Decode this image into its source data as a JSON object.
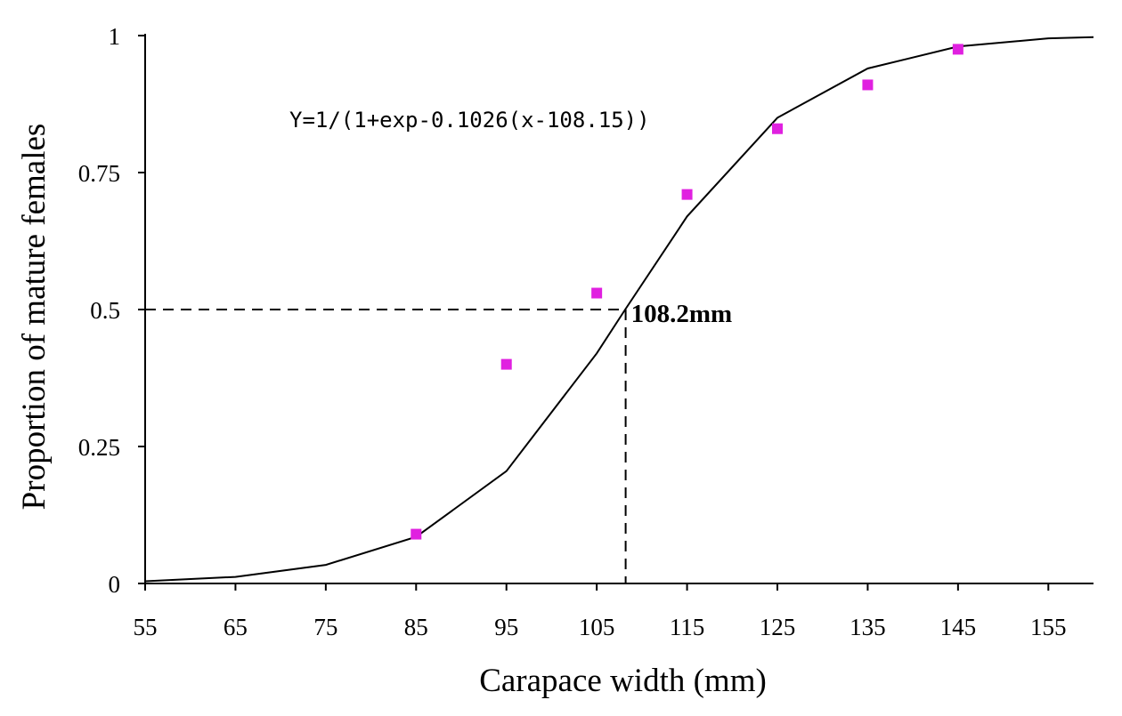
{
  "chart_data": {
    "type": "scatter",
    "xlabel": "Carapace width (mm)",
    "ylabel": "Proportion of mature females",
    "xlim": [
      55,
      160
    ],
    "ylim": [
      0,
      1
    ],
    "x_ticks": [
      55,
      65,
      75,
      85,
      95,
      105,
      115,
      125,
      135,
      145,
      155
    ],
    "y_ticks": [
      0,
      0.25,
      0.5,
      0.75,
      1
    ],
    "y_tick_labels": [
      "0",
      "0.25",
      "0.5",
      "0.75",
      "1"
    ],
    "grid": false,
    "legend": "none",
    "series": [
      {
        "kind": "points",
        "color": "#e020e0",
        "x": [
          85,
          95,
          105,
          115,
          125,
          135,
          145
        ],
        "y": [
          0.09,
          0.4,
          0.53,
          0.71,
          0.83,
          0.91,
          0.975
        ]
      },
      {
        "kind": "line",
        "color": "#000000",
        "x": [
          55,
          65,
          75,
          85,
          95,
          105,
          108.15,
          115,
          125,
          135,
          145,
          155,
          160
        ],
        "y": [
          0.004,
          0.012,
          0.034,
          0.085,
          0.205,
          0.42,
          0.5,
          0.67,
          0.85,
          0.94,
          0.98,
          0.995,
          0.997
        ]
      }
    ],
    "reference_point": {
      "x": 108.2,
      "y": 0.5
    },
    "annotations": {
      "equation": "Y=1/(1+exp-0.1026(x-108.15))",
      "midpoint_label": "108.2mm"
    }
  }
}
